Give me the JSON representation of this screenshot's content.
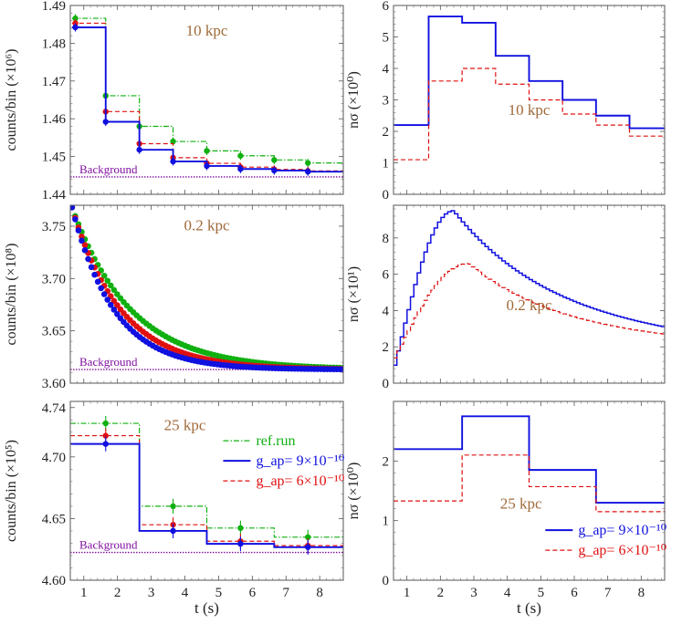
{
  "figure": {
    "xlabel": "t (s)",
    "colors": {
      "blue": "#1010e0",
      "red": "#e01010",
      "green": "#10b010",
      "purple": "#8010a0",
      "label": "#a06a3a"
    }
  },
  "chart_data": [
    {
      "id": "counts-10kpc",
      "type": "line",
      "subtype": "step-with-errorbars",
      "title": "10 kpc",
      "ylabel": "counts/bin (×10⁶)",
      "background_label": "Background",
      "background": 1.4446,
      "xlim": [
        0.6,
        8.7
      ],
      "ylim": [
        1.44,
        1.49
      ],
      "xticks": [
        1,
        2,
        3,
        4,
        5,
        6,
        7,
        8
      ],
      "yticks": [
        1.44,
        1.45,
        1.46,
        1.47,
        1.48,
        1.49
      ],
      "ytick_labels": [
        "1.44",
        "1.45",
        "1.46",
        "1.47",
        "1.48",
        "1.49"
      ],
      "edges": [
        0.65,
        1.65,
        2.65,
        3.65,
        4.65,
        5.65,
        6.65,
        7.65,
        8.7
      ],
      "x": [
        0.75,
        1.65,
        2.65,
        3.65,
        4.65,
        5.65,
        6.65,
        7.65
      ],
      "series": [
        {
          "name": "ref.run",
          "style": "dashdot",
          "color": "green",
          "values": [
            1.4866,
            1.4661,
            1.458,
            1.454,
            1.4515,
            1.4502,
            1.4491,
            1.4483
          ],
          "err": 0.0011
        },
        {
          "name": "g_ap = 6×10⁻¹⁰",
          "style": "dashed",
          "color": "red",
          "values": [
            1.4853,
            1.4619,
            1.4534,
            1.4497,
            1.4482,
            1.4472,
            1.4466,
            1.4462
          ],
          "err": 0.0011
        },
        {
          "name": "g_ap = 9×10⁻¹⁰",
          "style": "solid",
          "color": "blue",
          "values": [
            1.4842,
            1.4592,
            1.4518,
            1.4487,
            1.4475,
            1.4467,
            1.4463,
            1.446
          ],
          "err": 0.0011
        }
      ]
    },
    {
      "id": "nsigma-10kpc",
      "type": "line",
      "subtype": "step",
      "title": "10 kpc",
      "ylabel": "nσ (×10⁰)",
      "xlim": [
        0.6,
        8.7
      ],
      "ylim": [
        0,
        6
      ],
      "xticks": [
        1,
        2,
        3,
        4,
        5,
        6,
        7,
        8
      ],
      "yticks": [
        0,
        1,
        2,
        3,
        4,
        5,
        6
      ],
      "ytick_labels": [
        "0",
        "1",
        "2",
        "3",
        "4",
        "5",
        "6"
      ],
      "edges": [
        0.6,
        1.65,
        2.65,
        3.65,
        4.65,
        5.65,
        6.65,
        7.65,
        8.7
      ],
      "series": [
        {
          "name": "g_ap = 9×10⁻¹⁰",
          "style": "solid",
          "color": "blue",
          "values": [
            2.2,
            5.65,
            5.45,
            4.4,
            3.6,
            3.0,
            2.5,
            2.1
          ]
        },
        {
          "name": "g_ap = 6×10⁻¹⁰",
          "style": "dashed",
          "color": "red",
          "values": [
            1.1,
            3.6,
            4.0,
            3.5,
            3.0,
            2.55,
            2.2,
            1.85
          ]
        }
      ]
    },
    {
      "id": "counts-0.2kpc",
      "type": "scatter",
      "subtype": "decay-curves",
      "title": "0.2 kpc",
      "ylabel": "counts/bin (×10⁸)",
      "background_label": "Background",
      "background": 3.613,
      "xlim": [
        0.6,
        8.7
      ],
      "ylim": [
        3.6,
        3.77
      ],
      "xticks": [
        1,
        2,
        3,
        4,
        5,
        6,
        7,
        8
      ],
      "yticks": [
        3.6,
        3.65,
        3.7,
        3.75
      ],
      "ytick_labels": [
        "3.60",
        "3.65",
        "3.70",
        "3.75"
      ],
      "model": "y = background + amplitude * exp(-(t - 0.65) / tau), t in [0.65, 8.7], 85 points",
      "series": [
        {
          "name": "ref.run",
          "color": "green",
          "amplitude": 0.155,
          "tau": 1.75
        },
        {
          "name": "g_ap = 6×10⁻¹⁰",
          "color": "red",
          "amplitude": 0.155,
          "tau": 1.45
        },
        {
          "name": "g_ap = 9×10⁻¹⁰",
          "color": "blue",
          "amplitude": 0.155,
          "tau": 1.25
        }
      ]
    },
    {
      "id": "nsigma-0.2kpc",
      "type": "line",
      "subtype": "fine-step",
      "title": "0.2 kpc",
      "ylabel": "nσ (×10¹)",
      "xlim": [
        0.6,
        8.7
      ],
      "ylim": [
        0,
        9.8
      ],
      "xticks": [
        1,
        2,
        3,
        4,
        5,
        6,
        7,
        8
      ],
      "yticks": [
        0,
        2,
        4,
        6,
        8
      ],
      "ytick_labels": [
        "0",
        "2",
        "4",
        "6",
        "8"
      ],
      "model": "rise from start to peak at peak_t, then exponential decay toward end value at 8.7, 80 steps",
      "series": [
        {
          "name": "g_ap = 9×10⁻¹⁰",
          "style": "solid",
          "color": "blue",
          "start": 0.6,
          "peak": 9.5,
          "peak_t": 2.4,
          "end": 3.1
        },
        {
          "name": "g_ap = 6×10⁻¹⁰",
          "style": "dashed",
          "color": "red",
          "start": 1.2,
          "peak": 6.6,
          "peak_t": 2.85,
          "end": 2.7
        }
      ]
    },
    {
      "id": "counts-25kpc",
      "type": "line",
      "subtype": "step-with-errorbars",
      "title": "25 kpc",
      "ylabel": "counts/bin (×10⁵)",
      "background_label": "Background",
      "background": 4.6225,
      "xlim": [
        0.6,
        8.7
      ],
      "ylim": [
        4.6,
        4.745
      ],
      "xticks": [
        1,
        2,
        3,
        4,
        5,
        6,
        7,
        8
      ],
      "yticks": [
        4.6,
        4.65,
        4.7
      ],
      "ytick_labels": [
        "4.60",
        "4.65",
        "4.70"
      ],
      "extra_ytick": 4.74,
      "extra_ytick_label": "4.74",
      "edges": [
        0.6,
        2.65,
        4.65,
        6.65,
        8.7
      ],
      "x": [
        1.65,
        3.65,
        5.65,
        7.65
      ],
      "series": [
        {
          "name": "ref.run",
          "style": "dashdot",
          "color": "green",
          "values": [
            4.7272,
            4.66,
            4.6423,
            4.6349
          ],
          "err": 0.006
        },
        {
          "name": "g_ap = 6×10⁻¹⁰",
          "style": "dashed",
          "color": "red",
          "values": [
            4.7172,
            4.645,
            4.6316,
            4.628
          ],
          "err": 0.006
        },
        {
          "name": "g_ap = 9×10⁻¹⁰",
          "style": "solid",
          "color": "blue",
          "values": [
            4.7105,
            4.64,
            4.6295,
            4.6268
          ],
          "err": 0.006
        }
      ],
      "legend": {
        "placement": "right-center",
        "items": [
          {
            "label": "ref.run",
            "color": "green",
            "style": "dashdot"
          },
          {
            "label": "g_ap= 9×10⁻¹⁰",
            "color": "blue",
            "style": "solid"
          },
          {
            "label": "g_ap= 6×10⁻¹⁰",
            "color": "red",
            "style": "dashed"
          }
        ]
      }
    },
    {
      "id": "nsigma-25kpc",
      "type": "line",
      "subtype": "step",
      "title": "25 kpc",
      "ylabel": "nσ (×10⁰)",
      "xlim": [
        0.6,
        8.7
      ],
      "ylim": [
        0,
        3.0
      ],
      "xticks": [
        1,
        2,
        3,
        4,
        5,
        6,
        7,
        8
      ],
      "yticks": [
        0,
        1,
        2
      ],
      "ytick_labels": [
        "0",
        "1",
        "2"
      ],
      "edges": [
        0.6,
        2.65,
        4.65,
        6.65,
        8.7
      ],
      "series": [
        {
          "name": "g_ap = 9×10⁻¹⁰",
          "style": "solid",
          "color": "blue",
          "values": [
            2.2,
            2.75,
            1.85,
            1.3
          ]
        },
        {
          "name": "g_ap = 6×10⁻¹⁰",
          "style": "dashed",
          "color": "red",
          "values": [
            1.33,
            2.1,
            1.57,
            1.15
          ]
        }
      ],
      "legend": {
        "placement": "bottom-right",
        "items": [
          {
            "label": "g_ap= 9×10⁻¹⁰",
            "color": "blue",
            "style": "solid"
          },
          {
            "label": "g_ap= 6×10⁻¹⁰",
            "color": "red",
            "style": "dashed"
          }
        ]
      }
    }
  ]
}
